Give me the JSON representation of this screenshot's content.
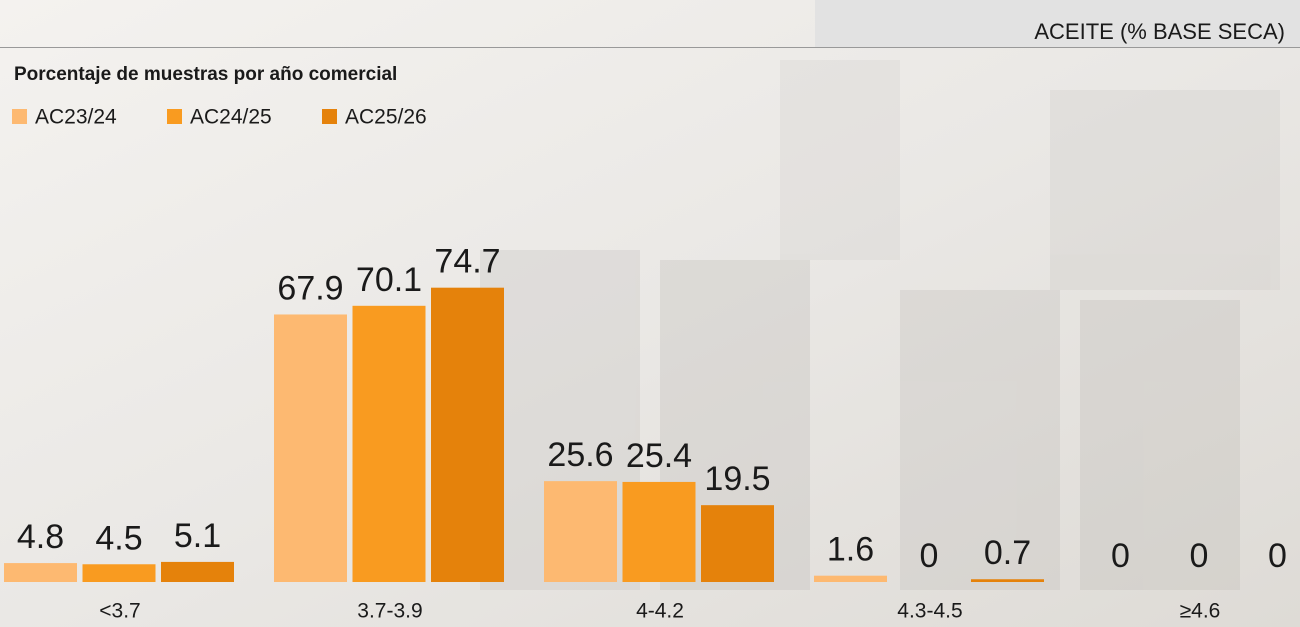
{
  "chart_data": {
    "type": "bar",
    "title": "ACEITE (% BASE SECA)",
    "subtitle": "Porcentaje de muestras por año comercial",
    "categories": [
      "<3.7",
      "3.7-3.9",
      "4-4.2",
      "4.3-4.5",
      "≥4.6"
    ],
    "series": [
      {
        "name": "AC23/24",
        "color": "#fdb971",
        "values": [
          4.8,
          67.9,
          25.6,
          1.6,
          0
        ]
      },
      {
        "name": "AC24/25",
        "color": "#f99b20",
        "values": [
          4.5,
          70.1,
          25.4,
          0,
          0
        ]
      },
      {
        "name": "AC25/26",
        "color": "#e5820b",
        "values": [
          5.1,
          74.7,
          19.5,
          0.7,
          0
        ]
      }
    ],
    "ylim": [
      0,
      100
    ]
  }
}
